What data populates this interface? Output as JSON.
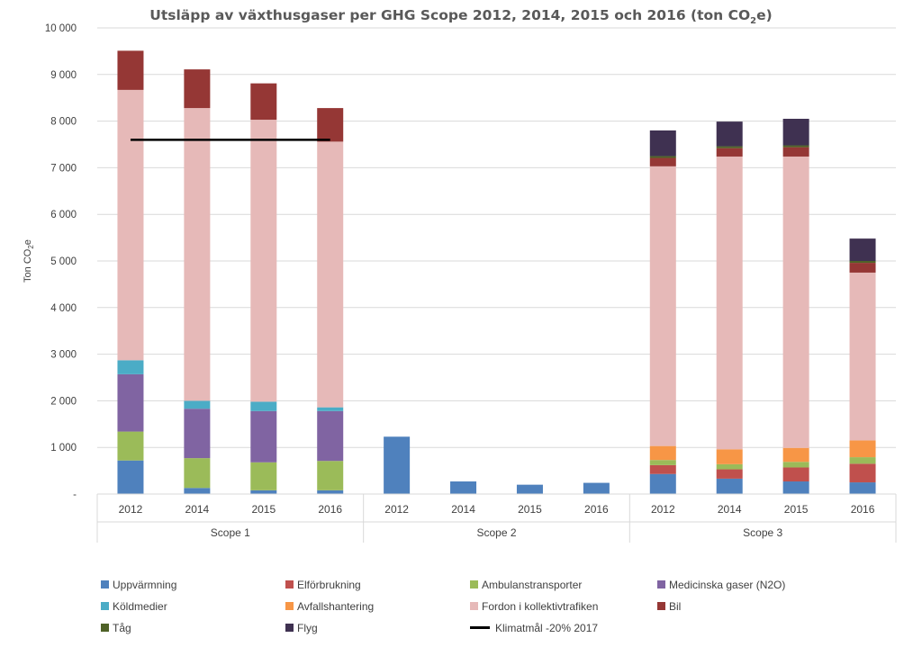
{
  "chart_data": {
    "type": "bar",
    "stacked": true,
    "title_main": "Utsläpp av växthusgaser per GHG Scope  2012, 2014, 2015 och 2016 (ton CO",
    "title_sub": "2",
    "title_end": "e)",
    "ylabel_main": "Ton CO",
    "ylabel_sub": "2",
    "ylabel_end": "e",
    "ylim": [
      0,
      10000
    ],
    "yticks": [
      "-",
      "1 000",
      "2 000",
      "3 000",
      "4 000",
      "5 000",
      "6 000",
      "7 000",
      "8 000",
      "9 000",
      "10 000"
    ],
    "groups": [
      {
        "name": "Scope 1",
        "categories": [
          "2012",
          "2014",
          "2015",
          "2016"
        ]
      },
      {
        "name": "Scope 2",
        "categories": [
          "2012",
          "2014",
          "2015",
          "2016"
        ]
      },
      {
        "name": "Scope 3",
        "categories": [
          "2012",
          "2014",
          "2015",
          "2016"
        ]
      }
    ],
    "series": [
      {
        "name": "Uppvärmning",
        "color": "#4F81BD",
        "values": [
          720,
          130,
          80,
          80,
          1230,
          270,
          200,
          240,
          430,
          330,
          270,
          250
        ]
      },
      {
        "name": "Elförbrukning",
        "color": "#C0504D",
        "values": [
          0,
          0,
          0,
          0,
          0,
          0,
          0,
          0,
          190,
          200,
          300,
          400
        ]
      },
      {
        "name": "Ambulanstransporter",
        "color": "#9BBB59",
        "values": [
          620,
          640,
          600,
          630,
          0,
          0,
          0,
          0,
          110,
          110,
          120,
          140
        ]
      },
      {
        "name": "Medicinska gaser (N2O)",
        "color": "#8064A2",
        "values": [
          1230,
          1060,
          1100,
          1070,
          0,
          0,
          0,
          0,
          0,
          0,
          0,
          0
        ]
      },
      {
        "name": "Köldmedier",
        "color": "#4BACC6",
        "values": [
          300,
          170,
          200,
          80,
          0,
          0,
          0,
          0,
          0,
          0,
          0,
          0
        ]
      },
      {
        "name": "Avfallshantering",
        "color": "#F79646",
        "values": [
          0,
          0,
          0,
          0,
          0,
          0,
          0,
          0,
          300,
          320,
          300,
          360
        ]
      },
      {
        "name": "Fordon i kollektivtrafiken",
        "color": "#E6B9B8",
        "values": [
          5800,
          6280,
          6050,
          5700,
          0,
          0,
          0,
          0,
          6000,
          6280,
          6250,
          3600
        ]
      },
      {
        "name": "Bil",
        "color": "#953735",
        "values": [
          840,
          830,
          780,
          720,
          0,
          0,
          0,
          0,
          180,
          180,
          200,
          210
        ]
      },
      {
        "name": "Tåg",
        "color": "#4F6228",
        "values": [
          0,
          0,
          0,
          0,
          0,
          0,
          0,
          0,
          40,
          40,
          40,
          40
        ]
      },
      {
        "name": "Flyg",
        "color": "#3F3151",
        "values": [
          0,
          0,
          0,
          0,
          0,
          0,
          0,
          0,
          550,
          530,
          570,
          480
        ]
      }
    ],
    "target_line": {
      "name": "Klimatmål -20% 2017",
      "value": 7600,
      "color": "#000000",
      "applies_to": "Scope 1"
    },
    "legend_order": [
      "Uppvärmning",
      "Elförbrukning",
      "Ambulanstransporter",
      "Medicinska gaser (N2O)",
      "Köldmedier",
      "Avfallshantering",
      "Fordon i kollektivtrafiken",
      "Bil",
      "Tåg",
      "Flyg",
      "Klimatmål -20% 2017"
    ],
    "grid": true,
    "legend_position": "bottom"
  }
}
